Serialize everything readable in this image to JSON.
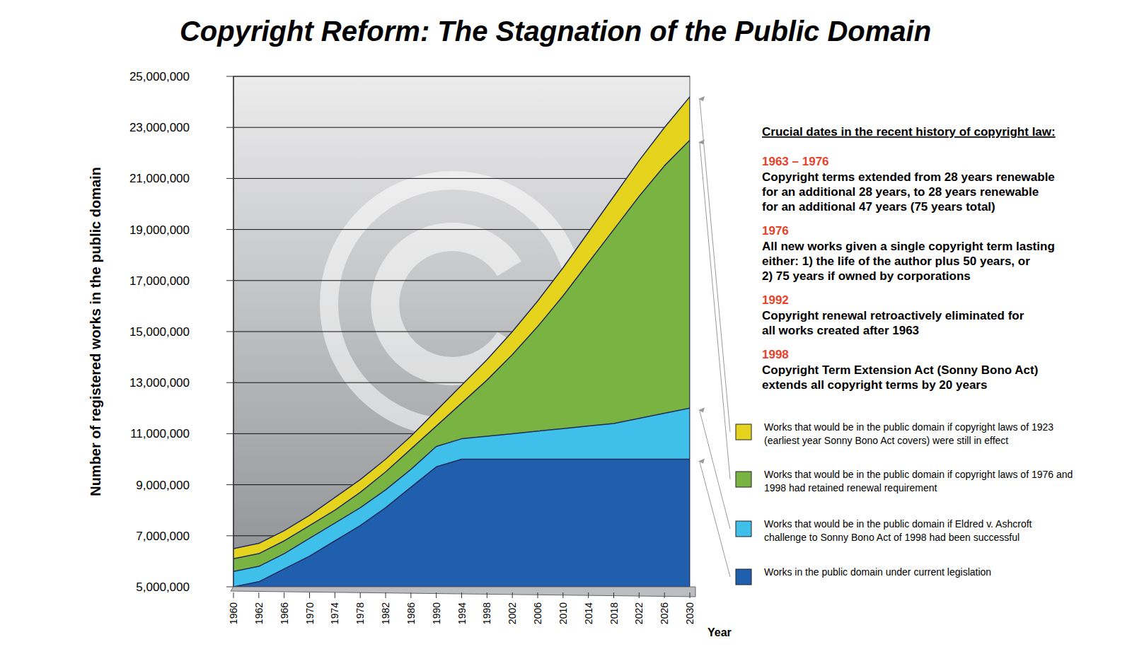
{
  "chart_data": {
    "type": "area",
    "title": "Copyright Reform: The Stagnation of the Public Domain",
    "y_label": "Number of registered works in the public domain",
    "x_label": "Year",
    "categories": [
      "1960",
      "1962",
      "1966",
      "1970",
      "1974",
      "1978",
      "1982",
      "1986",
      "1990",
      "1994",
      "1998",
      "2002",
      "2006",
      "2010",
      "2014",
      "2018",
      "2022",
      "2026",
      "2030"
    ],
    "ylim": [
      5000000,
      25000000
    ],
    "yticks": [
      {
        "value": 5000000,
        "label": "5,000,000"
      },
      {
        "value": 7000000,
        "label": "7,000,000"
      },
      {
        "value": 9000000,
        "label": "9,000,000"
      },
      {
        "value": 11000000,
        "label": "11,000,000"
      },
      {
        "value": 13000000,
        "label": "13,000,000"
      },
      {
        "value": 15000000,
        "label": "15,000,000"
      },
      {
        "value": 17000000,
        "label": "17,000,000"
      },
      {
        "value": 19000000,
        "label": "19,000,000"
      },
      {
        "value": 21000000,
        "label": "21,000,000"
      },
      {
        "value": 23000000,
        "label": "23,000,000"
      },
      {
        "value": 25000000,
        "label": "25,000,000"
      }
    ],
    "grid": true,
    "stacked": false,
    "series": [
      {
        "name": "Works that would be in the public domain if copyright laws of 1923 (earliest year Sonny Bono Act covers) were still in effect",
        "color": "#e6d31e",
        "values": [
          6500000,
          6700000,
          7200000,
          7800000,
          8500000,
          9200000,
          10000000,
          10900000,
          11900000,
          12900000,
          13900000,
          15000000,
          16200000,
          17500000,
          18900000,
          20300000,
          21700000,
          23000000,
          24200000
        ]
      },
      {
        "name": "Works that would be in the public domain if copyright laws of 1976 and 1998 had retained renewal requirement",
        "color": "#79b443",
        "values": [
          6100000,
          6300000,
          6800000,
          7400000,
          8000000,
          8700000,
          9500000,
          10400000,
          11300000,
          12200000,
          13100000,
          14100000,
          15200000,
          16400000,
          17700000,
          19000000,
          20300000,
          21500000,
          22500000
        ]
      },
      {
        "name": "Works that would be in the public domain if Eldred v. Ashcroft challenge to Sonny Bono Act of 1998 had been successful",
        "color": "#3fc0ea",
        "values": [
          5600000,
          5800000,
          6300000,
          6900000,
          7500000,
          8100000,
          8800000,
          9600000,
          10500000,
          10800000,
          10900000,
          11000000,
          11100000,
          11200000,
          11300000,
          11400000,
          11600000,
          11800000,
          12000000
        ]
      },
      {
        "name": "Works in the public domain under current legislation",
        "color": "#1f5fae",
        "values": [
          5000000,
          5200000,
          5700000,
          6200000,
          6800000,
          7400000,
          8100000,
          8900000,
          9700000,
          10000000,
          10000000,
          10000000,
          10000000,
          10000000,
          10000000,
          10000000,
          10000000,
          10000000,
          10000000
        ]
      }
    ],
    "annotations": {
      "heading": "Crucial dates in the recent history of copyright law:",
      "items": [
        {
          "date": "1963 – 1976",
          "lines": [
            "Copyright terms extended from 28 years renewable",
            "for an additional 28 years, to 28 years renewable",
            "for an additional 47 years (75 years total)"
          ]
        },
        {
          "date": "1976",
          "lines": [
            "All new works given a single copyright term lasting",
            "either: 1) the life of the author plus 50 years, or",
            "2) 75 years if owned by corporations"
          ]
        },
        {
          "date": "1992",
          "lines": [
            "Copyright renewal retroactively eliminated for",
            "all works created after 1963"
          ]
        },
        {
          "date": "1998",
          "lines": [
            "Copyright Term Extension Act (Sonny Bono Act)",
            "extends all copyright terms by 20 years"
          ]
        }
      ]
    }
  }
}
